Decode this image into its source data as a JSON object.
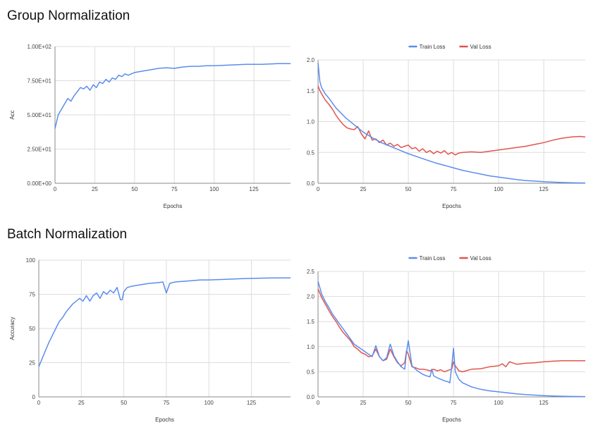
{
  "sections": [
    {
      "title": "Group Normalization"
    },
    {
      "title": "Batch Normalization"
    }
  ],
  "colors": {
    "train": "#5b8def",
    "val": "#e0554e",
    "grid": "#dddddd",
    "axis": "#888888"
  },
  "chart_data": [
    {
      "type": "line",
      "title": "",
      "xlabel": "Epochs",
      "ylabel": "Acc",
      "xlim": [
        0,
        148
      ],
      "ylim": [
        0,
        100
      ],
      "xticks": [
        0,
        25,
        50,
        75,
        100,
        125
      ],
      "xtick_labels": [
        "0",
        "25",
        "50",
        "75",
        "100",
        "125"
      ],
      "yticks": [
        0,
        25,
        50,
        75,
        100
      ],
      "ytick_labels": [
        "0.00E+00",
        "2.50E+01",
        "5.00E+01",
        "7.50E+01",
        "1.00E+02"
      ],
      "legend": "none",
      "series": [
        {
          "color_key": "train",
          "x": [
            0,
            2,
            4,
            6,
            8,
            10,
            12,
            14,
            16,
            18,
            20,
            22,
            24,
            26,
            28,
            30,
            32,
            34,
            36,
            38,
            40,
            42,
            44,
            46,
            48,
            50,
            55,
            60,
            65,
            70,
            75,
            80,
            85,
            90,
            95,
            100,
            110,
            120,
            130,
            140,
            148
          ],
          "y": [
            40,
            50,
            54,
            58,
            62,
            60,
            64,
            67,
            70,
            69,
            71,
            68,
            72,
            70,
            74,
            73,
            76,
            74,
            77,
            76,
            79,
            78,
            80,
            79,
            80,
            81,
            82,
            83,
            84,
            84.5,
            84,
            85,
            85.5,
            85.5,
            86,
            86,
            86.5,
            87,
            87,
            87.5,
            87.5
          ]
        }
      ]
    },
    {
      "type": "line",
      "title": "",
      "xlabel": "Epochs",
      "ylabel": "",
      "xlim": [
        0,
        148
      ],
      "ylim": [
        0,
        2
      ],
      "xticks": [
        0,
        25,
        50,
        75,
        100,
        125
      ],
      "xtick_labels": [
        "0",
        "25",
        "50",
        "75",
        "100",
        "125"
      ],
      "yticks": [
        0,
        0.5,
        1,
        1.5,
        2
      ],
      "ytick_labels": [
        "0.0",
        "0.5",
        "1.0",
        "1.5",
        "2.0"
      ],
      "legend": "top",
      "series": [
        {
          "name": "Train Loss",
          "color_key": "train",
          "x": [
            0,
            1,
            2,
            4,
            6,
            8,
            10,
            15,
            20,
            25,
            30,
            35,
            40,
            45,
            50,
            55,
            60,
            65,
            70,
            75,
            80,
            85,
            90,
            95,
            100,
            105,
            110,
            115,
            120,
            125,
            130,
            135,
            140,
            148
          ],
          "y": [
            1.95,
            1.65,
            1.55,
            1.45,
            1.38,
            1.3,
            1.22,
            1.07,
            0.95,
            0.83,
            0.74,
            0.66,
            0.6,
            0.54,
            0.48,
            0.43,
            0.38,
            0.33,
            0.29,
            0.25,
            0.21,
            0.18,
            0.15,
            0.12,
            0.1,
            0.08,
            0.06,
            0.045,
            0.035,
            0.025,
            0.018,
            0.012,
            0.008,
            0.005
          ]
        },
        {
          "name": "Val Loss",
          "color_key": "val",
          "x": [
            0,
            1,
            2,
            4,
            6,
            8,
            10,
            12,
            14,
            16,
            18,
            20,
            22,
            24,
            26,
            28,
            30,
            32,
            34,
            36,
            38,
            40,
            42,
            44,
            46,
            48,
            50,
            52,
            54,
            56,
            58,
            60,
            62,
            64,
            66,
            68,
            70,
            72,
            74,
            76,
            78,
            80,
            85,
            90,
            95,
            100,
            105,
            110,
            115,
            120,
            125,
            130,
            135,
            140,
            145,
            148
          ],
          "y": [
            1.58,
            1.5,
            1.45,
            1.35,
            1.28,
            1.2,
            1.1,
            1.02,
            0.95,
            0.9,
            0.88,
            0.87,
            0.92,
            0.8,
            0.72,
            0.85,
            0.7,
            0.72,
            0.66,
            0.7,
            0.62,
            0.65,
            0.6,
            0.63,
            0.58,
            0.6,
            0.62,
            0.56,
            0.58,
            0.52,
            0.56,
            0.5,
            0.53,
            0.48,
            0.52,
            0.49,
            0.53,
            0.47,
            0.5,
            0.46,
            0.49,
            0.5,
            0.51,
            0.5,
            0.52,
            0.54,
            0.56,
            0.58,
            0.6,
            0.63,
            0.66,
            0.7,
            0.73,
            0.75,
            0.76,
            0.75
          ]
        }
      ]
    },
    {
      "type": "line",
      "title": "",
      "xlabel": "Epochs",
      "ylabel": "Accuracy",
      "xlim": [
        0,
        148
      ],
      "ylim": [
        0,
        100
      ],
      "xticks": [
        0,
        25,
        50,
        75,
        100,
        125
      ],
      "xtick_labels": [
        "0",
        "25",
        "50",
        "75",
        "100",
        "125"
      ],
      "yticks": [
        0,
        25,
        50,
        75,
        100
      ],
      "ytick_labels": [
        "0",
        "25",
        "50",
        "75",
        "100"
      ],
      "legend": "none",
      "series": [
        {
          "color_key": "train",
          "x": [
            0,
            2,
            4,
            6,
            8,
            10,
            12,
            14,
            16,
            18,
            20,
            22,
            24,
            26,
            28,
            30,
            32,
            34,
            36,
            38,
            40,
            42,
            44,
            46,
            48,
            49,
            50,
            52,
            55,
            60,
            65,
            70,
            73,
            75,
            77,
            80,
            85,
            90,
            95,
            100,
            110,
            120,
            130,
            140,
            148
          ],
          "y": [
            22,
            28,
            34,
            40,
            45,
            50,
            55,
            58,
            62,
            65,
            68,
            70,
            72,
            70,
            74,
            70,
            74,
            76,
            72,
            77,
            75,
            78,
            76,
            80,
            71,
            71,
            77,
            80,
            81,
            82,
            83,
            83.5,
            84,
            76,
            83,
            84,
            84.5,
            85,
            85.5,
            85.5,
            86,
            86.5,
            86.8,
            87,
            87
          ]
        }
      ]
    },
    {
      "type": "line",
      "title": "",
      "xlabel": "Epochs",
      "ylabel": "",
      "xlim": [
        0,
        148
      ],
      "ylim": [
        0,
        2.5
      ],
      "xticks": [
        0,
        25,
        50,
        75,
        100,
        125
      ],
      "xtick_labels": [
        "0",
        "25",
        "50",
        "75",
        "100",
        "125"
      ],
      "yticks": [
        0,
        0.5,
        1,
        1.5,
        2,
        2.5
      ],
      "ytick_labels": [
        "0.0",
        "0.5",
        "1.0",
        "1.5",
        "2.0",
        "2.5"
      ],
      "legend": "top",
      "series": [
        {
          "name": "Train Loss",
          "color_key": "train",
          "x": [
            0,
            2,
            4,
            6,
            8,
            10,
            12,
            14,
            16,
            18,
            20,
            22,
            24,
            26,
            28,
            30,
            32,
            34,
            36,
            38,
            40,
            42,
            44,
            46,
            48,
            49,
            50,
            52,
            55,
            58,
            60,
            62,
            63,
            64,
            66,
            68,
            70,
            72,
            73,
            74,
            75,
            76,
            78,
            80,
            85,
            90,
            95,
            100,
            105,
            110,
            115,
            120,
            125,
            130,
            135,
            140,
            148
          ],
          "y": [
            2.3,
            2.05,
            1.9,
            1.78,
            1.65,
            1.55,
            1.45,
            1.35,
            1.25,
            1.15,
            1.05,
            1.0,
            0.95,
            0.9,
            0.85,
            0.8,
            1.02,
            0.8,
            0.72,
            0.78,
            1.05,
            0.82,
            0.7,
            0.6,
            0.55,
            0.9,
            1.12,
            0.62,
            0.52,
            0.45,
            0.42,
            0.4,
            0.55,
            0.42,
            0.38,
            0.35,
            0.32,
            0.3,
            0.28,
            0.6,
            0.97,
            0.5,
            0.35,
            0.28,
            0.2,
            0.15,
            0.12,
            0.1,
            0.08,
            0.06,
            0.045,
            0.035,
            0.025,
            0.018,
            0.012,
            0.008,
            0.005
          ]
        },
        {
          "name": "Val Loss",
          "color_key": "val",
          "x": [
            0,
            2,
            4,
            6,
            8,
            10,
            12,
            14,
            16,
            18,
            20,
            22,
            24,
            26,
            28,
            30,
            32,
            34,
            36,
            38,
            40,
            42,
            44,
            46,
            48,
            49,
            50,
            52,
            54,
            56,
            58,
            60,
            62,
            64,
            66,
            68,
            70,
            72,
            74,
            75,
            76,
            78,
            80,
            85,
            90,
            95,
            100,
            102,
            104,
            106,
            110,
            115,
            120,
            125,
            130,
            135,
            140,
            148
          ],
          "y": [
            2.15,
            1.98,
            1.85,
            1.72,
            1.6,
            1.5,
            1.38,
            1.28,
            1.2,
            1.12,
            1.0,
            0.95,
            0.88,
            0.85,
            0.8,
            0.82,
            0.95,
            0.8,
            0.72,
            0.75,
            0.95,
            0.8,
            0.68,
            0.62,
            0.68,
            0.92,
            0.85,
            0.6,
            0.58,
            0.55,
            0.55,
            0.54,
            0.52,
            0.55,
            0.52,
            0.54,
            0.5,
            0.53,
            0.55,
            0.7,
            0.62,
            0.52,
            0.5,
            0.55,
            0.56,
            0.6,
            0.62,
            0.66,
            0.6,
            0.7,
            0.65,
            0.67,
            0.68,
            0.7,
            0.71,
            0.72,
            0.72,
            0.72
          ]
        }
      ]
    }
  ]
}
